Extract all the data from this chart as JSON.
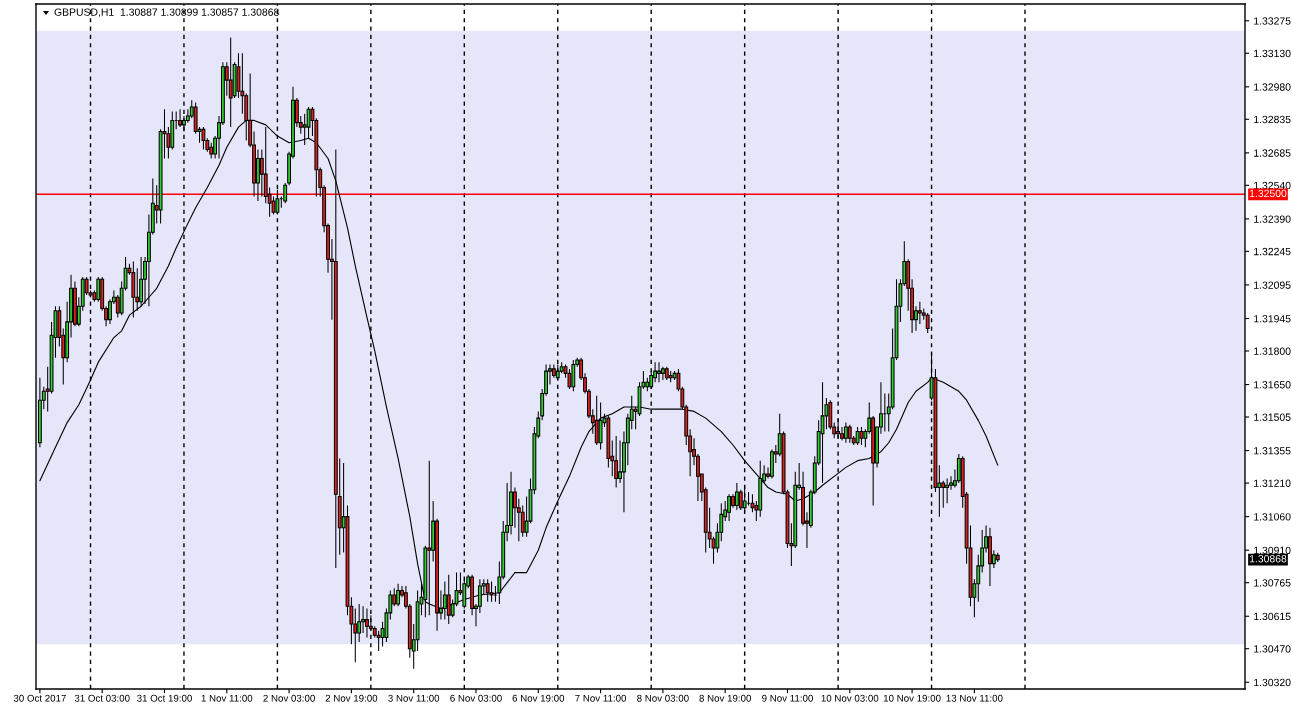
{
  "chart_data": {
    "type": "candlestick",
    "title": "GBPUSD,H1  1.30887 1.30899 1.30857 1.30868",
    "categories": [
      "30 Oct 2017",
      null,
      null,
      null,
      null,
      null,
      null,
      null,
      null,
      null,
      null,
      null,
      null,
      null,
      null,
      null,
      "31 Oct 03:00",
      null,
      null,
      null,
      null,
      null,
      null,
      null,
      null,
      null,
      null,
      null,
      null,
      null,
      null,
      null,
      "31 Oct 19:00",
      null,
      null,
      null,
      null,
      null,
      null,
      null,
      null,
      null,
      null,
      null,
      null,
      null,
      null,
      null,
      "1 Nov 11:00",
      null,
      null,
      null,
      null,
      null,
      null,
      null,
      null,
      null,
      null,
      null,
      null,
      null,
      null,
      null,
      "2 Nov 03:00",
      null,
      null,
      null,
      null,
      null,
      null,
      null,
      null,
      null,
      null,
      null,
      null,
      null,
      null,
      null,
      "2 Nov 19:00",
      null,
      null,
      null,
      null,
      null,
      null,
      null,
      null,
      null,
      null,
      null,
      null,
      null,
      null,
      null,
      "3 Nov 11:00",
      null,
      null,
      null,
      null,
      null,
      null,
      null,
      null,
      null,
      null,
      null,
      null,
      null,
      null,
      null,
      "6 Nov 03:00",
      null,
      null,
      null,
      null,
      null,
      null,
      null,
      null,
      null,
      null,
      null,
      null,
      null,
      null,
      null,
      "6 Nov 19:00",
      null,
      null,
      null,
      null,
      null,
      null,
      null,
      null,
      null,
      null,
      null,
      null,
      null,
      null,
      null,
      "7 Nov 11:00",
      null,
      null,
      null,
      null,
      null,
      null,
      null,
      null,
      null,
      null,
      null,
      null,
      null,
      null,
      null,
      "8 Nov 03:00",
      null,
      null,
      null,
      null,
      null,
      null,
      null,
      null,
      null,
      null,
      null,
      null,
      null,
      null,
      null,
      "8 Nov 19:00",
      null,
      null,
      null,
      null,
      null,
      null,
      null,
      null,
      null,
      null,
      null,
      null,
      null,
      null,
      null,
      "9 Nov 11:00",
      null,
      null,
      null,
      null,
      null,
      null,
      null,
      null,
      null,
      null,
      null,
      null,
      null,
      null,
      null,
      "10 Nov 03:00",
      null,
      null,
      null,
      null,
      null,
      null,
      null,
      null,
      null,
      null,
      null,
      null,
      null,
      null,
      null,
      "10 Nov 19:00",
      null,
      null,
      null,
      null,
      null,
      null,
      null,
      null,
      null,
      null,
      null,
      null,
      null,
      null,
      null,
      "13 Nov 11:00",
      null,
      null,
      null,
      null,
      null,
      null,
      null,
      null,
      null,
      null,
      null,
      null,
      null,
      null,
      null,
      null,
      null,
      null,
      null,
      null,
      null,
      null,
      null,
      null,
      null,
      null,
      null,
      null,
      null,
      null,
      null,
      null,
      null,
      null,
      null,
      null,
      null,
      null,
      null,
      null,
      null,
      null,
      null,
      null,
      null,
      null,
      null,
      null,
      null,
      null,
      null,
      null,
      null,
      null,
      null,
      null,
      null,
      null,
      null,
      null,
      null,
      null,
      null,
      null,
      null,
      null,
      null,
      null,
      null
    ],
    "ohlc": [
      [
        1.3139,
        1.3168,
        1.3137,
        1.3158
      ],
      [
        1.3158,
        1.3164,
        1.3154,
        1.3162
      ],
      [
        1.3163,
        1.3173,
        1.3153,
        1.3162
      ],
      [
        1.3162,
        1.3193,
        1.3161,
        1.3187
      ],
      [
        1.3186,
        1.32,
        1.3177,
        1.3198
      ],
      [
        1.3198,
        1.32,
        1.3182,
        1.3186
      ],
      [
        1.3187,
        1.319,
        1.3165,
        1.3177
      ],
      [
        1.3177,
        1.3202,
        1.3175,
        1.3193
      ],
      [
        1.3193,
        1.3214,
        1.3186,
        1.3208
      ],
      [
        1.3208,
        1.3211,
        1.3191,
        1.3192
      ],
      [
        1.3192,
        1.3204,
        1.3191,
        1.32
      ],
      [
        1.32,
        1.3213,
        1.3198,
        1.3212
      ],
      [
        1.3212,
        1.3213,
        1.3205,
        1.3206
      ],
      [
        1.3206,
        1.3207,
        1.3204,
        1.3205
      ],
      [
        1.3206,
        1.3207,
        1.3202,
        1.3203
      ],
      [
        1.3203,
        1.3213,
        1.3202,
        1.3212
      ],
      [
        1.3212,
        1.3213,
        1.3198,
        1.3199
      ],
      [
        1.3199,
        1.32,
        1.3191,
        1.3194
      ],
      [
        1.3194,
        1.3203,
        1.3192,
        1.3202
      ],
      [
        1.3202,
        1.3207,
        1.3201,
        1.3204
      ],
      [
        1.3204,
        1.3205,
        1.3195,
        1.3197
      ],
      [
        1.3197,
        1.3211,
        1.3196,
        1.3208
      ],
      [
        1.3208,
        1.3222,
        1.3207,
        1.3217
      ],
      [
        1.3217,
        1.3219,
        1.3214,
        1.3215
      ],
      [
        1.3215,
        1.322,
        1.3195,
        1.3204
      ],
      [
        1.3204,
        1.3217,
        1.3198,
        1.3202
      ],
      [
        1.3202,
        1.3222,
        1.32,
        1.3212
      ],
      [
        1.3212,
        1.3222,
        1.3201,
        1.322
      ],
      [
        1.322,
        1.3241,
        1.32,
        1.3233
      ],
      [
        1.3233,
        1.3257,
        1.3232,
        1.3246
      ],
      [
        1.3245,
        1.3254,
        1.3237,
        1.3243
      ],
      [
        1.3243,
        1.3279,
        1.3237,
        1.3278
      ],
      [
        1.3278,
        1.3288,
        1.3266,
        1.3277
      ],
      [
        1.3277,
        1.328,
        1.3266,
        1.3271
      ],
      [
        1.3271,
        1.3287,
        1.327,
        1.3283
      ],
      [
        1.3283,
        1.3287,
        1.3279,
        1.3283
      ],
      [
        1.3283,
        1.3288,
        1.328,
        1.3281
      ],
      [
        1.3281,
        1.3285,
        1.3278,
        1.3283
      ],
      [
        1.3283,
        1.3288,
        1.3282,
        1.3285
      ],
      [
        1.3285,
        1.3292,
        1.3284,
        1.3289
      ],
      [
        1.3289,
        1.3291,
        1.3277,
        1.3278
      ],
      [
        1.3278,
        1.328,
        1.3273,
        1.3279
      ],
      [
        1.3279,
        1.328,
        1.327,
        1.3274
      ],
      [
        1.3274,
        1.3275,
        1.3269,
        1.327
      ],
      [
        1.3271,
        1.3273,
        1.3266,
        1.3268
      ],
      [
        1.3268,
        1.3276,
        1.3266,
        1.3275
      ],
      [
        1.3275,
        1.3285,
        1.3266,
        1.3282
      ],
      [
        1.3282,
        1.3309,
        1.3281,
        1.3307
      ],
      [
        1.3307,
        1.3309,
        1.3294,
        1.3301
      ],
      [
        1.3301,
        1.332,
        1.328,
        1.3293
      ],
      [
        1.3294,
        1.3309,
        1.3293,
        1.3308
      ],
      [
        1.3307,
        1.3313,
        1.3293,
        1.3296
      ],
      [
        1.3296,
        1.3313,
        1.3286,
        1.3294
      ],
      [
        1.3294,
        1.3295,
        1.3274,
        1.3283
      ],
      [
        1.3283,
        1.3304,
        1.3271,
        1.3272
      ],
      [
        1.3272,
        1.3278,
        1.3249,
        1.3255
      ],
      [
        1.3255,
        1.327,
        1.3247,
        1.3266
      ],
      [
        1.3266,
        1.327,
        1.3249,
        1.3259
      ],
      [
        1.3259,
        1.328,
        1.3246,
        1.3249
      ],
      [
        1.325,
        1.3253,
        1.324,
        1.3246
      ],
      [
        1.3247,
        1.3249,
        1.3241,
        1.3242
      ],
      [
        1.3242,
        1.3252,
        1.3241,
        1.3248
      ],
      [
        1.3248,
        1.3249,
        1.3244,
        1.3248
      ],
      [
        1.3247,
        1.3255,
        1.3246,
        1.3254
      ],
      [
        1.3255,
        1.3269,
        1.3254,
        1.3268
      ],
      [
        1.3267,
        1.3298,
        1.3266,
        1.3292
      ],
      [
        1.3292,
        1.3293,
        1.328,
        1.3282
      ],
      [
        1.3282,
        1.3285,
        1.3277,
        1.328
      ],
      [
        1.328,
        1.3286,
        1.3272,
        1.3281
      ],
      [
        1.328,
        1.3289,
        1.3275,
        1.3288
      ],
      [
        1.3288,
        1.3289,
        1.3276,
        1.3283
      ],
      [
        1.3283,
        1.3284,
        1.3249,
        1.3261
      ],
      [
        1.3261,
        1.3262,
        1.3249,
        1.3253
      ],
      [
        1.3253,
        1.3254,
        1.3233,
        1.3236
      ],
      [
        1.3236,
        1.3237,
        1.3215,
        1.3221
      ],
      [
        1.3221,
        1.323,
        1.3194,
        1.322
      ],
      [
        1.322,
        1.327,
        1.3083,
        1.3116
      ],
      [
        1.3115,
        1.3132,
        1.3089,
        1.3101
      ],
      [
        1.3101,
        1.313,
        1.309,
        1.3106
      ],
      [
        1.3106,
        1.3111,
        1.3062,
        1.3066
      ],
      [
        1.3066,
        1.307,
        1.3049,
        1.3058
      ],
      [
        1.3058,
        1.3065,
        1.3041,
        1.3054
      ],
      [
        1.3054,
        1.3067,
        1.305,
        1.3059
      ],
      [
        1.3059,
        1.3066,
        1.3054,
        1.306
      ],
      [
        1.306,
        1.3065,
        1.3052,
        1.3057
      ],
      [
        1.3057,
        1.3062,
        1.3055,
        1.3056
      ],
      [
        1.3056,
        1.3057,
        1.3052,
        1.3053
      ],
      [
        1.3053,
        1.3055,
        1.3046,
        1.3052
      ],
      [
        1.3052,
        1.3059,
        1.3048,
        1.3056
      ],
      [
        1.3052,
        1.3065,
        1.305,
        1.3063
      ],
      [
        1.3063,
        1.3073,
        1.306,
        1.3071
      ],
      [
        1.3071,
        1.3074,
        1.3066,
        1.3067
      ],
      [
        1.3067,
        1.3076,
        1.3066,
        1.3073
      ],
      [
        1.3073,
        1.3075,
        1.307,
        1.3071
      ],
      [
        1.3072,
        1.3075,
        1.3065,
        1.3066
      ],
      [
        1.3066,
        1.3067,
        1.3043,
        1.3047
      ],
      [
        1.3046,
        1.3058,
        1.3038,
        1.3051
      ],
      [
        1.3051,
        1.3073,
        1.3046,
        1.3068
      ],
      [
        1.3067,
        1.3076,
        1.3062,
        1.307
      ],
      [
        1.3069,
        1.3093,
        1.3061,
        1.3092
      ],
      [
        1.3092,
        1.3131,
        1.3062,
        1.3091
      ],
      [
        1.3091,
        1.3113,
        1.3086,
        1.3104
      ],
      [
        1.3104,
        1.3105,
        1.3055,
        1.3063
      ],
      [
        1.3063,
        1.3073,
        1.306,
        1.3065
      ],
      [
        1.3065,
        1.3077,
        1.306,
        1.3071
      ],
      [
        1.3071,
        1.308,
        1.3058,
        1.3062
      ],
      [
        1.3062,
        1.3069,
        1.3061,
        1.3067
      ],
      [
        1.3067,
        1.3081,
        1.3066,
        1.3073
      ],
      [
        1.3073,
        1.3081,
        1.3071,
        1.3072
      ],
      [
        1.3066,
        1.3078,
        1.3065,
        1.3076
      ],
      [
        1.3075,
        1.308,
        1.3074,
        1.3079
      ],
      [
        1.3079,
        1.308,
        1.3062,
        1.3065
      ],
      [
        1.3065,
        1.3067,
        1.3057,
        1.3066
      ],
      [
        1.3066,
        1.3078,
        1.3063,
        1.3075
      ],
      [
        1.3075,
        1.3078,
        1.3071,
        1.3076
      ],
      [
        1.3076,
        1.3078,
        1.3068,
        1.3072
      ],
      [
        1.3072,
        1.3077,
        1.3068,
        1.3071
      ],
      [
        1.3071,
        1.3075,
        1.3068,
        1.3071
      ],
      [
        1.3072,
        1.3086,
        1.3067,
        1.3079
      ],
      [
        1.3079,
        1.3104,
        1.3078,
        1.3099
      ],
      [
        1.3099,
        1.3121,
        1.3095,
        1.3102
      ],
      [
        1.3102,
        1.3126,
        1.3098,
        1.3117
      ],
      [
        1.3117,
        1.3119,
        1.3101,
        1.311
      ],
      [
        1.311,
        1.3114,
        1.3095,
        1.3108
      ],
      [
        1.3108,
        1.3111,
        1.3097,
        1.3099
      ],
      [
        1.3099,
        1.3115,
        1.3097,
        1.3104
      ],
      [
        1.3104,
        1.3123,
        1.3103,
        1.3118
      ],
      [
        1.3118,
        1.3146,
        1.3116,
        1.3143
      ],
      [
        1.3142,
        1.3153,
        1.3141,
        1.315
      ],
      [
        1.3151,
        1.3163,
        1.3149,
        1.3161
      ],
      [
        1.3161,
        1.3174,
        1.316,
        1.3171
      ],
      [
        1.3171,
        1.3174,
        1.3165,
        1.3172
      ],
      [
        1.3172,
        1.3174,
        1.3168,
        1.3169
      ],
      [
        1.3168,
        1.3174,
        1.3167,
        1.3171
      ],
      [
        1.3171,
        1.3175,
        1.317,
        1.3173
      ],
      [
        1.3173,
        1.3174,
        1.3168,
        1.317
      ],
      [
        1.317,
        1.3172,
        1.3163,
        1.3164
      ],
      [
        1.3164,
        1.3176,
        1.3162,
        1.3174
      ],
      [
        1.3174,
        1.3177,
        1.3173,
        1.3176
      ],
      [
        1.3176,
        1.3177,
        1.3167,
        1.3168
      ],
      [
        1.3168,
        1.317,
        1.3161,
        1.3162
      ],
      [
        1.3162,
        1.3163,
        1.315,
        1.3151
      ],
      [
        1.3151,
        1.3154,
        1.3143,
        1.3148
      ],
      [
        1.3149,
        1.316,
        1.3138,
        1.3139
      ],
      [
        1.3139,
        1.3157,
        1.3136,
        1.3149
      ],
      [
        1.3148,
        1.3152,
        1.3146,
        1.315
      ],
      [
        1.315,
        1.3151,
        1.3128,
        1.3132
      ],
      [
        1.3133,
        1.314,
        1.3124,
        1.3131
      ],
      [
        1.3131,
        1.3142,
        1.3119,
        1.3123
      ],
      [
        1.3123,
        1.314,
        1.3121,
        1.3126
      ],
      [
        1.3126,
        1.3144,
        1.3108,
        1.3139
      ],
      [
        1.3139,
        1.3152,
        1.3129,
        1.315
      ],
      [
        1.3149,
        1.316,
        1.3145,
        1.3154
      ],
      [
        1.3154,
        1.3155,
        1.3145,
        1.3153
      ],
      [
        1.3152,
        1.3166,
        1.3151,
        1.3164
      ],
      [
        1.3164,
        1.3171,
        1.3163,
        1.3166
      ],
      [
        1.3164,
        1.3168,
        1.3162,
        1.3166
      ],
      [
        1.3164,
        1.3171,
        1.3163,
        1.3169
      ],
      [
        1.3168,
        1.3175,
        1.3166,
        1.3171
      ],
      [
        1.317,
        1.3175,
        1.3166,
        1.3171
      ],
      [
        1.317,
        1.3173,
        1.3167,
        1.3172
      ],
      [
        1.3172,
        1.3173,
        1.3167,
        1.3168
      ],
      [
        1.3169,
        1.3171,
        1.3166,
        1.3168
      ],
      [
        1.3168,
        1.3171,
        1.3167,
        1.317
      ],
      [
        1.317,
        1.3172,
        1.3162,
        1.3163
      ],
      [
        1.3163,
        1.3164,
        1.3154,
        1.3155
      ],
      [
        1.3155,
        1.3156,
        1.3138,
        1.3142
      ],
      [
        1.3142,
        1.3145,
        1.3124,
        1.3135
      ],
      [
        1.3136,
        1.3141,
        1.3129,
        1.3133
      ],
      [
        1.3133,
        1.3134,
        1.3113,
        1.3124
      ],
      [
        1.3125,
        1.3125,
        1.3113,
        1.3117
      ],
      [
        1.3118,
        1.3119,
        1.309,
        1.3099
      ],
      [
        1.3099,
        1.311,
        1.3092,
        1.3096
      ],
      [
        1.3096,
        1.3097,
        1.3085,
        1.3092
      ],
      [
        1.3092,
        1.3103,
        1.309,
        1.3099
      ],
      [
        1.3099,
        1.3112,
        1.3095,
        1.3107
      ],
      [
        1.3106,
        1.3113,
        1.3104,
        1.3109
      ],
      [
        1.3108,
        1.3116,
        1.3104,
        1.3115
      ],
      [
        1.3115,
        1.3116,
        1.311,
        1.3111
      ],
      [
        1.3111,
        1.3121,
        1.3109,
        1.3117
      ],
      [
        1.3117,
        1.3118,
        1.3109,
        1.311
      ],
      [
        1.311,
        1.312,
        1.3108,
        1.3113
      ],
      [
        1.3112,
        1.3117,
        1.3111,
        1.3112
      ],
      [
        1.3112,
        1.3116,
        1.3108,
        1.311
      ],
      [
        1.3111,
        1.3113,
        1.3104,
        1.3109
      ],
      [
        1.3109,
        1.3131,
        1.3106,
        1.3123
      ],
      [
        1.3122,
        1.3129,
        1.3121,
        1.3125
      ],
      [
        1.3125,
        1.3128,
        1.3123,
        1.3124
      ],
      [
        1.3124,
        1.3136,
        1.3123,
        1.3135
      ],
      [
        1.3135,
        1.3138,
        1.313,
        1.3134
      ],
      [
        1.3134,
        1.3152,
        1.3133,
        1.3143
      ],
      [
        1.3143,
        1.3144,
        1.3116,
        1.3117
      ],
      [
        1.3117,
        1.3118,
        1.3092,
        1.3094
      ],
      [
        1.3094,
        1.3103,
        1.3084,
        1.3093
      ],
      [
        1.3093,
        1.3126,
        1.3092,
        1.312
      ],
      [
        1.3119,
        1.313,
        1.3118,
        1.312
      ],
      [
        1.3119,
        1.3126,
        1.3102,
        1.3103
      ],
      [
        1.3104,
        1.3108,
        1.3092,
        1.3103
      ],
      [
        1.3102,
        1.3118,
        1.3101,
        1.3117
      ],
      [
        1.3117,
        1.3133,
        1.3116,
        1.313
      ],
      [
        1.313,
        1.3149,
        1.3129,
        1.3144
      ],
      [
        1.3143,
        1.3166,
        1.3121,
        1.3151
      ],
      [
        1.3151,
        1.3159,
        1.3145,
        1.3156
      ],
      [
        1.3157,
        1.3158,
        1.3145,
        1.3146
      ],
      [
        1.3146,
        1.3148,
        1.3141,
        1.3143
      ],
      [
        1.3144,
        1.315,
        1.3141,
        1.3143
      ],
      [
        1.3143,
        1.3146,
        1.314,
        1.3141
      ],
      [
        1.3141,
        1.3148,
        1.3139,
        1.3146
      ],
      [
        1.3146,
        1.3147,
        1.3139,
        1.3141
      ],
      [
        1.3141,
        1.3142,
        1.3138,
        1.3139
      ],
      [
        1.3139,
        1.3146,
        1.3138,
        1.3144
      ],
      [
        1.3144,
        1.3146,
        1.3138,
        1.3141
      ],
      [
        1.3141,
        1.3145,
        1.3137,
        1.3144
      ],
      [
        1.3144,
        1.3157,
        1.3143,
        1.315
      ],
      [
        1.315,
        1.3151,
        1.3111,
        1.313
      ],
      [
        1.313,
        1.3146,
        1.3128,
        1.3146
      ],
      [
        1.3146,
        1.3166,
        1.3143,
        1.3152
      ],
      [
        1.3152,
        1.3161,
        1.3144,
        1.3152
      ],
      [
        1.3152,
        1.3161,
        1.3144,
        1.3155
      ],
      [
        1.3155,
        1.319,
        1.3154,
        1.3177
      ],
      [
        1.3177,
        1.3212,
        1.3176,
        1.32
      ],
      [
        1.32,
        1.3212,
        1.3193,
        1.321
      ],
      [
        1.321,
        1.3229,
        1.3209,
        1.322
      ],
      [
        1.322,
        1.3221,
        1.3198,
        1.3208
      ],
      [
        1.3208,
        1.3212,
        1.3188,
        1.3194
      ],
      [
        1.3194,
        1.32,
        1.3189,
        1.3198
      ],
      [
        1.3198,
        1.3202,
        1.3192,
        1.3197
      ],
      [
        1.3197,
        1.3199,
        1.3194,
        1.3196
      ],
      [
        1.3196,
        1.3197,
        1.3188,
        1.319
      ],
      [
        1.3159,
        1.3179,
        1.3158,
        1.3168
      ],
      [
        1.3168,
        1.3172,
        1.3117,
        1.3119
      ],
      [
        1.3119,
        1.3129,
        1.3106,
        1.3121
      ],
      [
        1.3121,
        1.3122,
        1.311,
        1.3119
      ],
      [
        1.3119,
        1.3123,
        1.3112,
        1.312
      ],
      [
        1.312,
        1.3124,
        1.3118,
        1.3121
      ],
      [
        1.312,
        1.3127,
        1.3119,
        1.3122
      ],
      [
        1.3122,
        1.3134,
        1.3121,
        1.3132
      ],
      [
        1.3132,
        1.3133,
        1.311,
        1.3115
      ],
      [
        1.3116,
        1.3117,
        1.3085,
        1.3092
      ],
      [
        1.3092,
        1.3102,
        1.3066,
        1.307
      ],
      [
        1.307,
        1.3078,
        1.3061,
        1.3076
      ],
      [
        1.3076,
        1.3089,
        1.3068,
        1.3084
      ],
      [
        1.3084,
        1.31,
        1.3081,
        1.3092
      ],
      [
        1.3092,
        1.3102,
        1.309,
        1.3097
      ],
      [
        1.3097,
        1.3101,
        1.3075,
        1.3085
      ],
      [
        1.3085,
        1.3091,
        1.3083,
        1.3089
      ],
      [
        1.30887,
        1.30899,
        1.30857,
        1.30868
      ],
      null,
      null,
      null,
      null,
      null,
      null,
      null,
      null,
      null,
      null,
      null,
      null,
      null,
      null,
      null,
      null,
      null,
      null,
      null,
      null,
      null,
      null,
      null,
      null,
      null,
      null,
      null,
      null,
      null,
      null,
      null,
      null,
      null,
      null,
      null,
      null,
      null,
      null,
      null,
      null,
      null,
      null,
      null,
      null,
      null,
      null,
      null,
      null,
      null,
      null,
      null,
      null,
      null,
      null,
      null,
      null,
      null,
      null,
      null,
      null,
      null,
      null,
      null
    ],
    "colors": [
      "#33cc33",
      "#33cc33",
      "#dd2222",
      "#33cc33",
      "#33cc33",
      "#dd2222",
      "#dd2222",
      "#33cc33",
      "#33cc33",
      "#dd2222",
      "#33cc33",
      "#33cc33",
      "#dd2222",
      "#dd2222",
      "#dd2222",
      "#33cc33",
      "#dd2222",
      "#dd2222",
      "#33cc33",
      "#33cc33",
      "#dd2222",
      "#33cc33",
      "#33cc33",
      "#dd2222",
      "#dd2222",
      "#dd2222",
      "#33cc33",
      "#33cc33",
      "#33cc33",
      "#33cc33",
      "#dd2222",
      "#33cc33",
      "#dd2222",
      "#dd2222",
      "#33cc33",
      "#000000",
      "#dd2222",
      "#33cc33",
      "#33cc33",
      "#33cc33",
      "#dd2222",
      "#33cc33",
      "#dd2222",
      "#dd2222",
      "#dd2222",
      "#33cc33",
      "#33cc33",
      "#33cc33",
      "#dd2222",
      "#dd2222",
      "#33cc33",
      "#dd2222",
      "#dd2222",
      "#dd2222",
      "#dd2222",
      "#dd2222",
      "#33cc33",
      "#dd2222",
      "#dd2222",
      "#dd2222",
      "#dd2222",
      "#33cc33",
      "#000000",
      "#33cc33",
      "#33cc33",
      "#33cc33",
      "#dd2222",
      "#dd2222",
      "#33cc33",
      "#33cc33",
      "#dd2222",
      "#dd2222",
      "#dd2222",
      "#dd2222",
      "#dd2222",
      "#dd2222",
      "#dd2222",
      "#dd2222",
      "#33cc33",
      "#dd2222",
      "#dd2222",
      "#dd2222",
      "#33cc33",
      "#33cc33",
      "#dd2222",
      "#dd2222",
      "#dd2222",
      "#dd2222",
      "#33cc33",
      "#33cc33",
      "#33cc33",
      "#dd2222",
      "#33cc33",
      "#dd2222",
      "#dd2222",
      "#dd2222",
      "#33cc33",
      "#33cc33",
      "#33cc33",
      "#33cc33",
      "#dd2222",
      "#33cc33",
      "#dd2222",
      "#33cc33",
      "#33cc33",
      "#dd2222",
      "#33cc33",
      "#33cc33",
      "#dd2222",
      "#33cc33",
      "#33cc33",
      "#dd2222",
      "#33cc33",
      "#33cc33",
      "#33cc33",
      "#dd2222",
      "#dd2222",
      "#000000",
      "#33cc33",
      "#33cc33",
      "#33cc33",
      "#33cc33",
      "#dd2222",
      "#dd2222",
      "#dd2222",
      "#33cc33",
      "#33cc33",
      "#33cc33",
      "#33cc33",
      "#33cc33",
      "#33cc33",
      "#33cc33",
      "#dd2222",
      "#33cc33",
      "#33cc33",
      "#dd2222",
      "#dd2222",
      "#33cc33",
      "#33cc33",
      "#dd2222",
      "#dd2222",
      "#dd2222",
      "#dd2222",
      "#dd2222",
      "#33cc33",
      "#33cc33",
      "#dd2222",
      "#dd2222",
      "#dd2222",
      "#33cc33",
      "#33cc33",
      "#33cc33",
      "#33cc33",
      "#dd2222",
      "#33cc33",
      "#33cc33",
      "#33cc33",
      "#33cc33",
      "#33cc33",
      "#33cc33",
      "#33cc33",
      "#dd2222",
      "#dd2222",
      "#33cc33",
      "#dd2222",
      "#dd2222",
      "#dd2222",
      "#dd2222",
      "#dd2222",
      "#dd2222",
      "#dd2222",
      "#dd2222",
      "#dd2222",
      "#dd2222",
      "#33cc33",
      "#33cc33",
      "#33cc33",
      "#33cc33",
      "#dd2222",
      "#33cc33",
      "#dd2222",
      "#33cc33",
      "#000000",
      "#dd2222",
      "#dd2222",
      "#33cc33",
      "#33cc33",
      "#dd2222",
      "#33cc33",
      "#dd2222",
      "#33cc33",
      "#dd2222",
      "#dd2222",
      "#dd2222",
      "#33cc33",
      "#33cc33",
      "#dd2222",
      "#dd2222",
      "#33cc33",
      "#33cc33",
      "#33cc33",
      "#33cc33",
      "#33cc33",
      "#dd2222",
      "#dd2222",
      "#dd2222",
      "#dd2222",
      "#33cc33",
      "#dd2222",
      "#dd2222",
      "#33cc33",
      "#dd2222",
      "#33cc33",
      "#33cc33",
      "#dd2222",
      "#33cc33",
      "#33cc33",
      "#000000",
      "#33cc33",
      "#33cc33",
      "#33cc33",
      "#33cc33",
      "#33cc33",
      "#dd2222",
      "#dd2222",
      "#33cc33",
      "#dd2222",
      "#dd2222",
      "#dd2222",
      "#33cc33",
      "#dd2222",
      "#33cc33",
      "#dd2222",
      "#33cc33",
      "#33cc33",
      "#33cc33",
      "#33cc33",
      "#dd2222",
      "#dd2222",
      "#dd2222",
      "#33cc33",
      "#33cc33",
      "#33cc33",
      "#33cc33",
      "#dd2222",
      "#33cc33",
      "#dd2222",
      null,
      null,
      null,
      null,
      null,
      null,
      null,
      null,
      null,
      null,
      null,
      null,
      null,
      null,
      null,
      null,
      null,
      null,
      null,
      null,
      null,
      null,
      null,
      null,
      null,
      null,
      null,
      null,
      null,
      null,
      null,
      null,
      null,
      null,
      null,
      null,
      null,
      null,
      null,
      null,
      null,
      null,
      null,
      null,
      null,
      null,
      null,
      null,
      null,
      null,
      null,
      null,
      null,
      null,
      null,
      null,
      null,
      null,
      null,
      null,
      null,
      null,
      null
    ],
    "series": [
      {
        "type": "line",
        "color": "#000000",
        "values": [
          1.3122,
          null,
          null,
          null,
          1.3137,
          null,
          null,
          1.3148,
          null,
          null,
          1.3156,
          null,
          null,
          1.3167,
          null,
          1.3175,
          null,
          null,
          null,
          1.3186,
          null,
          1.3189,
          null,
          1.3196,
          null,
          null,
          1.32,
          null,
          1.3204,
          null,
          1.3208,
          null,
          null,
          1.3218,
          null,
          1.3226,
          null,
          null,
          1.3237,
          null,
          1.3244,
          null,
          null,
          1.3253,
          null,
          null,
          1.3263,
          null,
          1.3271,
          null,
          null,
          1.328,
          null,
          1.3283,
          null,
          1.3283,
          null,
          null,
          1.3281,
          null,
          null,
          1.3276,
          null,
          null,
          1.3273,
          null,
          null,
          1.3274,
          null,
          1.3275,
          null,
          1.3273,
          null,
          null,
          1.3266,
          null,
          1.3256,
          1.3249,
          null,
          1.3235,
          null,
          1.3218,
          null,
          null,
          1.3195,
          null,
          1.318,
          null,
          null,
          1.3155,
          null,
          null,
          1.3132,
          null,
          null,
          1.3106,
          null,
          1.3085,
          null,
          1.3068,
          1.3067,
          null,
          null,
          1.3065,
          null,
          null,
          1.3067,
          null,
          null,
          1.3069,
          null,
          null,
          null,
          1.3071,
          null,
          null,
          null,
          null,
          1.3072,
          null,
          null,
          null,
          1.3081,
          null,
          null,
          1.3081,
          null,
          null,
          1.3091,
          null,
          1.3101,
          null,
          null,
          1.3113,
          null,
          null,
          1.3124,
          null,
          null,
          1.3137,
          null,
          1.3144,
          null,
          null,
          1.315,
          null,
          null,
          1.3152,
          null,
          null,
          1.3155,
          null,
          null,
          null,
          1.3155,
          null,
          null,
          1.3154,
          null,
          null,
          null,
          1.3154,
          null,
          null,
          null,
          1.3154,
          null,
          null,
          1.3153,
          null,
          null,
          1.315,
          null,
          null,
          null,
          1.3144,
          null,
          null,
          1.3138,
          null,
          null,
          1.3131,
          null,
          null,
          1.3125,
          null,
          null,
          1.3119,
          null,
          1.3117,
          null,
          null,
          1.3116,
          null,
          1.3113,
          null,
          1.3114,
          null,
          null,
          1.3117,
          null,
          1.312,
          null,
          null,
          1.3124,
          null,
          null,
          1.3128,
          null,
          null,
          1.3131,
          null,
          null,
          1.3132,
          null,
          null,
          1.3135,
          null,
          1.3139,
          null,
          1.3145,
          null,
          null,
          1.3157,
          null,
          1.3162,
          null,
          null,
          1.3166,
          1.3168,
          null,
          null,
          1.3166,
          null,
          null,
          null,
          1.3162,
          null,
          1.3158,
          null,
          null,
          1.3149,
          null,
          1.3142,
          null,
          null,
          1.3129,
          null,
          null,
          null,
          null,
          null,
          null,
          null,
          null,
          null,
          null,
          null,
          null,
          null,
          null,
          null,
          null,
          null,
          null,
          null,
          null,
          null,
          null,
          null,
          null,
          null,
          null,
          null,
          null,
          null,
          null,
          null,
          null,
          null,
          null,
          null,
          null,
          null,
          null,
          null,
          null,
          null,
          null,
          null,
          null,
          null,
          null,
          null,
          null,
          null,
          null,
          null,
          null,
          null,
          null,
          null,
          null,
          null,
          null,
          null,
          null,
          null,
          null,
          null
        ]
      }
    ],
    "ylim": [
      1.3029,
      1.3335
    ],
    "yticks": [
      {
        "value": 1.3032,
        "label": "1.30320"
      },
      {
        "value": 1.3047,
        "label": "1.30470"
      },
      1.30615,
      1.30765,
      {
        "value": 1.3091,
        "label": "1.30910"
      },
      {
        "value": 1.3106,
        "label": "1.31060"
      },
      {
        "value": 1.3121,
        "label": "1.31210"
      },
      1.31355,
      1.31505,
      {
        "value": 1.3165,
        "label": "1.31650"
      },
      {
        "value": 1.318,
        "label": "1.31800"
      },
      1.31945,
      1.32095,
      1.32245,
      {
        "value": 1.3239,
        "label": "1.32390"
      },
      {
        "value": 1.3254,
        "label": "1.32540"
      },
      1.32685,
      1.32835,
      {
        "value": 1.3298,
        "label": "1.32980"
      },
      {
        "value": 1.3313,
        "label": "1.33130"
      },
      1.33275
    ],
    "bands": [
      {
        "axis": "y",
        "from": 1.3049,
        "to": 1.3323,
        "color": "#e6e6fa"
      }
    ],
    "ref_lines": [
      {
        "axis": "y",
        "value": 1.325,
        "label": "1.32500",
        "color": "#ff0000",
        "line_style": "solid"
      }
    ],
    "annotations": [
      "1.30868"
    ]
  }
}
